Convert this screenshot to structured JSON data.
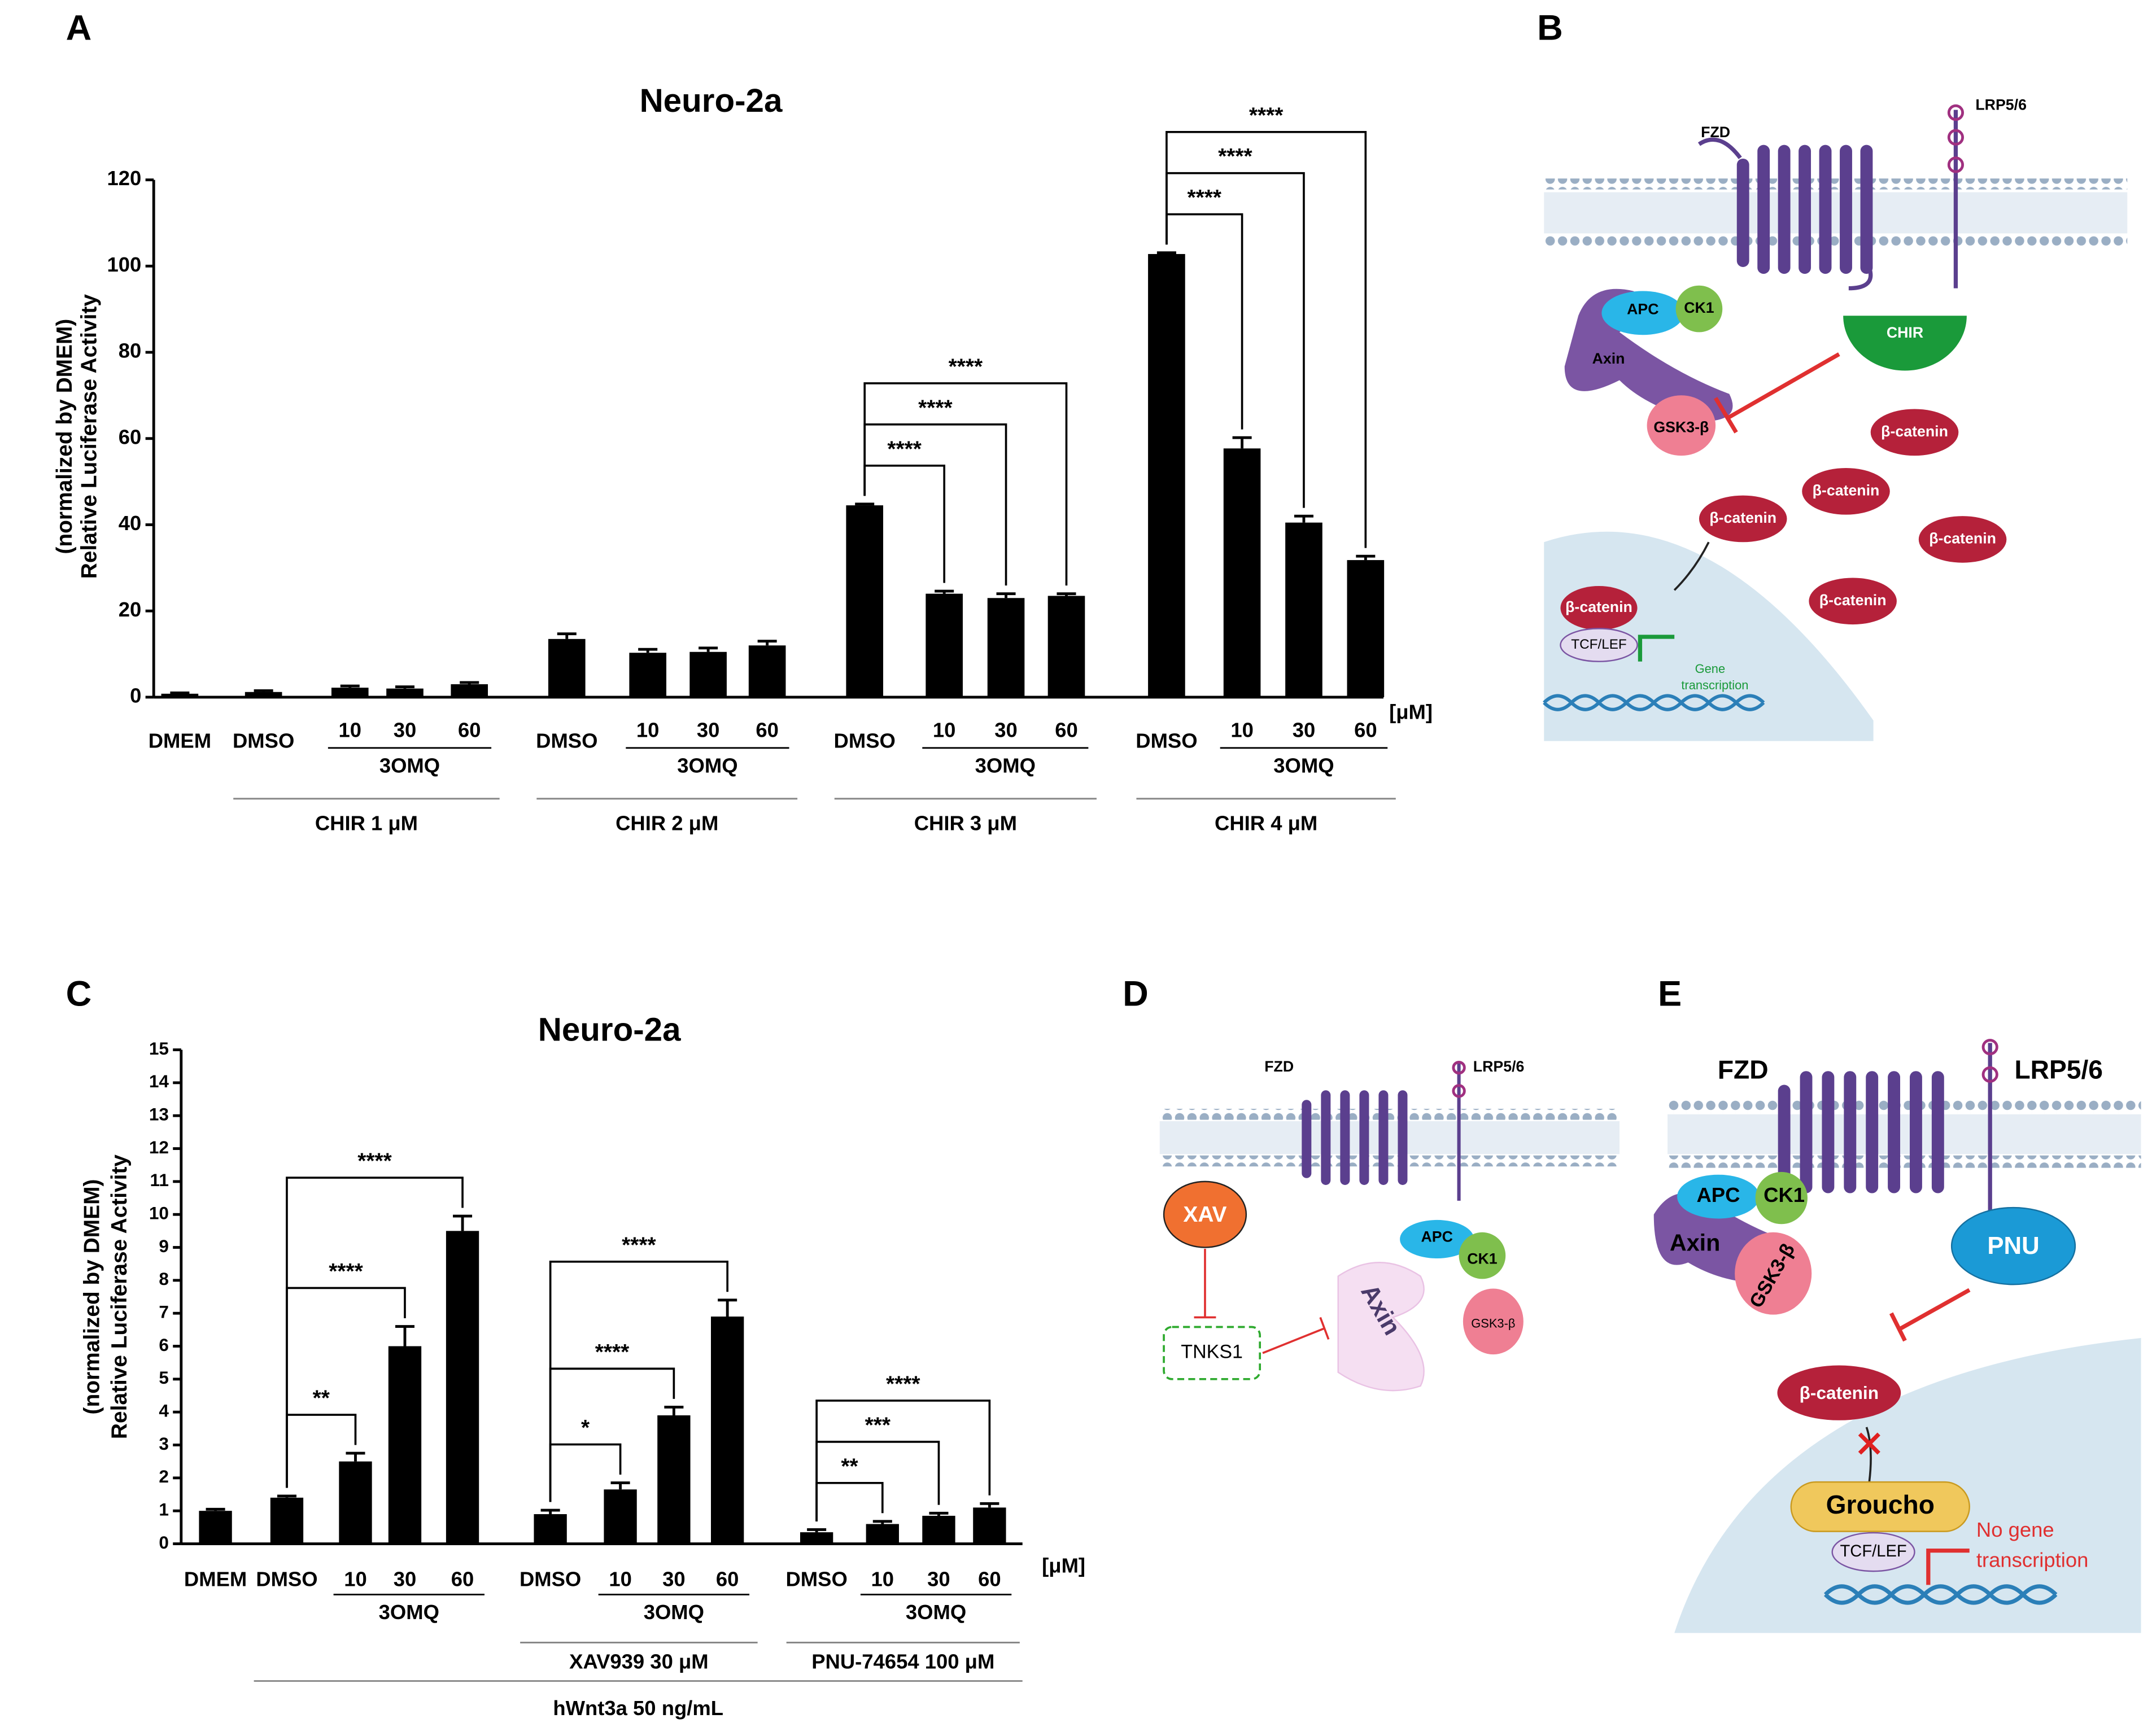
{
  "panels": {
    "a": "A",
    "b": "B",
    "c": "C",
    "d": "D",
    "e": "E"
  },
  "chart_data": [
    {
      "type": "bar",
      "title": "Neuro-2a",
      "y_label": [
        "Relative Luciferase Activity",
        "(normalized by DMEM)"
      ],
      "categories": [
        "DMEM",
        "DMSO",
        "10",
        "30",
        "60",
        "DMSO",
        "10",
        "30",
        "60",
        "DMSO",
        "10",
        "30",
        "60",
        "DMSO",
        "10",
        "30",
        "60"
      ],
      "values": [
        0.8,
        1.2,
        2.2,
        2.0,
        3.0,
        13.5,
        10.3,
        10.5,
        12.0,
        44.5,
        24.0,
        23.0,
        23.5,
        102.8,
        57.7,
        40.5,
        31.8
      ],
      "errors": [
        0.2,
        0.3,
        0.4,
        0.4,
        0.4,
        1.2,
        0.8,
        0.9,
        1.0,
        0.3,
        0.6,
        1.0,
        0.5,
        0.3,
        2.5,
        1.5,
        0.9
      ],
      "color": "#000000",
      "ylim": [
        0,
        120
      ],
      "yticks": [
        0,
        20,
        40,
        60,
        80,
        100,
        120
      ],
      "x_unit": "[μM]",
      "subgroups": [
        {
          "label": "3OMQ",
          "from": 2,
          "to": 4
        },
        {
          "label": "3OMQ",
          "from": 6,
          "to": 8
        },
        {
          "label": "3OMQ",
          "from": 10,
          "to": 12
        },
        {
          "label": "3OMQ",
          "from": 14,
          "to": 16
        }
      ],
      "groups": [
        {
          "label": "CHIR 1 μM",
          "from": 1,
          "to": 4
        },
        {
          "label": "CHIR 2 μM",
          "from": 5,
          "to": 8
        },
        {
          "label": "CHIR 3 μM",
          "from": 9,
          "to": 12
        },
        {
          "label": "CHIR 4 μM",
          "from": 13,
          "to": 16
        }
      ],
      "outer_groups": [],
      "brackets": [
        {
          "from": 9,
          "to": 10,
          "label": "****"
        },
        {
          "from": 9,
          "to": 11,
          "label": "****"
        },
        {
          "from": 9,
          "to": 12,
          "label": "****"
        },
        {
          "from": 13,
          "to": 14,
          "label": "****"
        },
        {
          "from": 13,
          "to": 15,
          "label": "****"
        },
        {
          "from": 13,
          "to": 16,
          "label": "****"
        }
      ]
    },
    {
      "type": "bar",
      "title": "Neuro-2a",
      "y_label": [
        "Relative Luciferase Activity",
        "(normalized by DMEM)"
      ],
      "categories": [
        "DMEM",
        "DMSO",
        "10",
        "30",
        "60",
        "DMSO",
        "10",
        "30",
        "60",
        "DMSO",
        "10",
        "30",
        "60"
      ],
      "values": [
        1.0,
        1.4,
        2.5,
        6.0,
        9.5,
        0.9,
        1.65,
        3.9,
        6.9,
        0.35,
        0.6,
        0.85,
        1.1
      ],
      "errors": [
        0.05,
        0.05,
        0.25,
        0.6,
        0.45,
        0.12,
        0.2,
        0.25,
        0.5,
        0.08,
        0.08,
        0.08,
        0.12
      ],
      "color": "#000000",
      "ylim": [
        0,
        15
      ],
      "yticks": [
        0,
        1,
        2,
        3,
        4,
        5,
        6,
        7,
        8,
        9,
        10,
        11,
        12,
        13,
        14,
        15
      ],
      "x_unit": "[μM]",
      "subgroups": [
        {
          "label": "3OMQ",
          "from": 2,
          "to": 4
        },
        {
          "label": "3OMQ",
          "from": 6,
          "to": 8
        },
        {
          "label": "3OMQ",
          "from": 10,
          "to": 12
        }
      ],
      "groups": [
        {
          "label": "XAV939 30 μM",
          "from": 5,
          "to": 8
        },
        {
          "label": "PNU-74654 100 μM",
          "from": 9,
          "to": 12
        }
      ],
      "outer_groups": [
        {
          "label": "hWnt3a 50 ng/mL",
          "from": 1,
          "to": 12
        }
      ],
      "brackets": [
        {
          "from": 1,
          "to": 2,
          "label": "**"
        },
        {
          "from": 1,
          "to": 3,
          "label": "****"
        },
        {
          "from": 1,
          "to": 4,
          "label": "****"
        },
        {
          "from": 5,
          "to": 6,
          "label": "*"
        },
        {
          "from": 5,
          "to": 7,
          "label": "****"
        },
        {
          "from": 5,
          "to": 8,
          "label": "****"
        },
        {
          "from": 9,
          "to": 10,
          "label": "**"
        },
        {
          "from": 9,
          "to": 11,
          "label": "***"
        },
        {
          "from": 9,
          "to": 12,
          "label": "****"
        }
      ]
    }
  ],
  "diagram_b": {
    "fzd": "FZD",
    "lrp": "LRP5/6",
    "apc": "APC",
    "ck1": "CK1",
    "axin": "Axin",
    "gsk": "GSK3-β",
    "drug": "CHIR",
    "bcat": [
      "β-catenin",
      "β-catenin",
      "β-catenin",
      "β-catenin",
      "β-catenin",
      "β-catenin"
    ],
    "tcf": "TCF/LEF",
    "gene": [
      "Gene",
      "transcription"
    ]
  },
  "diagram_d": {
    "fzd": "FZD",
    "lrp": "LRP5/6",
    "drug": "XAV",
    "tnks": "TNKS1",
    "apc": "APC",
    "ck1": "CK1",
    "axin": "Axin",
    "gsk": "GSK3-β"
  },
  "diagram_e": {
    "fzd": "FZD",
    "lrp": "LRP5/6",
    "apc": "APC",
    "ck1": "CK1",
    "axin": "Axin",
    "gsk": "GSK3-β",
    "drug": "PNU",
    "bcat": "β-catenin",
    "groucho": "Groucho",
    "tcf": "TCF/LEF",
    "nogene": [
      "No gene",
      "transcription"
    ]
  }
}
